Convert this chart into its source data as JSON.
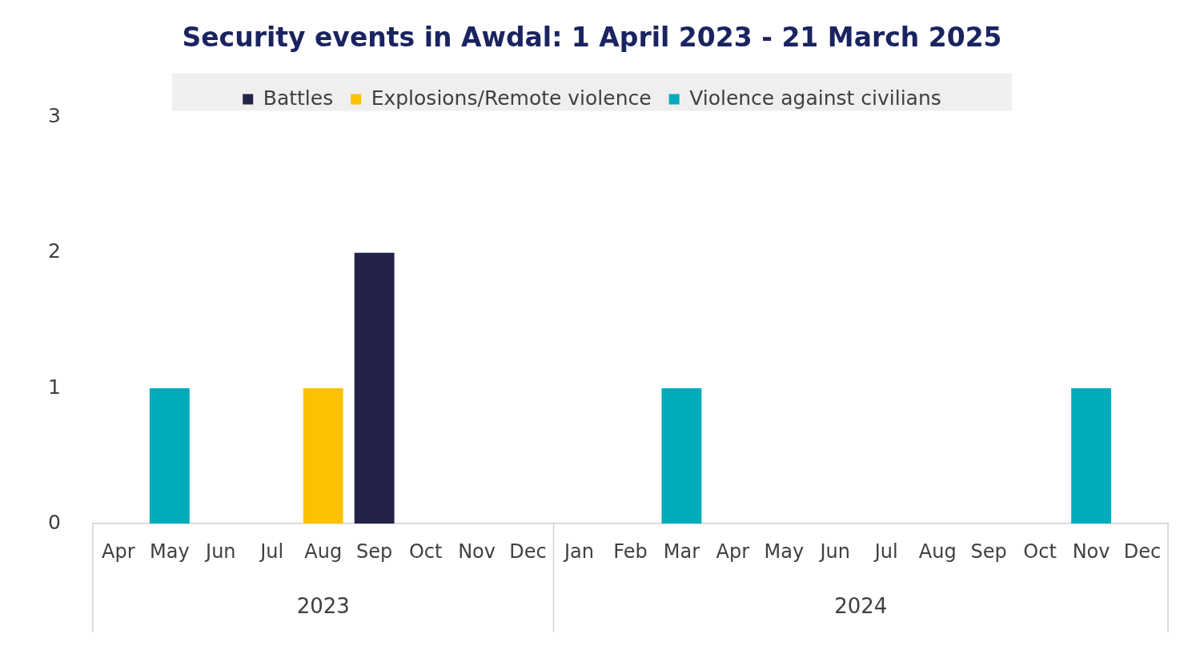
{
  "chart_data": {
    "type": "bar",
    "title": "Security events in Awdal: 1 April 2023 - 21 March 2025",
    "stacked": true,
    "legend": "top",
    "grid": false,
    "categories": [
      "Apr",
      "May",
      "Jun",
      "Jul",
      "Aug",
      "Sep",
      "Oct",
      "Nov",
      "Dec",
      "Jan",
      "Feb",
      "Mar",
      "Apr",
      "May",
      "Jun",
      "Jul",
      "Aug",
      "Sep",
      "Oct",
      "Nov",
      "Dec"
    ],
    "series": [
      {
        "name": "Battles",
        "color": "#23234a",
        "values": [
          0,
          0,
          0,
          0,
          0,
          2,
          0,
          0,
          0,
          0,
          0,
          0,
          0,
          0,
          0,
          0,
          0,
          0,
          0,
          0,
          0
        ]
      },
      {
        "name": "Explosions/Remote violence",
        "color": "#fcc200",
        "values": [
          0,
          0,
          0,
          0,
          1,
          0,
          0,
          0,
          0,
          0,
          0,
          0,
          0,
          0,
          0,
          0,
          0,
          0,
          0,
          0,
          0
        ]
      },
      {
        "name": "Violence against civilians",
        "color": "#00abbc",
        "values": [
          0,
          1,
          0,
          0,
          0,
          0,
          0,
          0,
          0,
          0,
          0,
          1,
          0,
          0,
          0,
          0,
          0,
          0,
          0,
          1,
          0
        ]
      }
    ],
    "ylim": [
      0,
      3
    ],
    "yticks": [
      0,
      1,
      2,
      3
    ],
    "annotations": [
      "2023",
      "2024"
    ]
  }
}
